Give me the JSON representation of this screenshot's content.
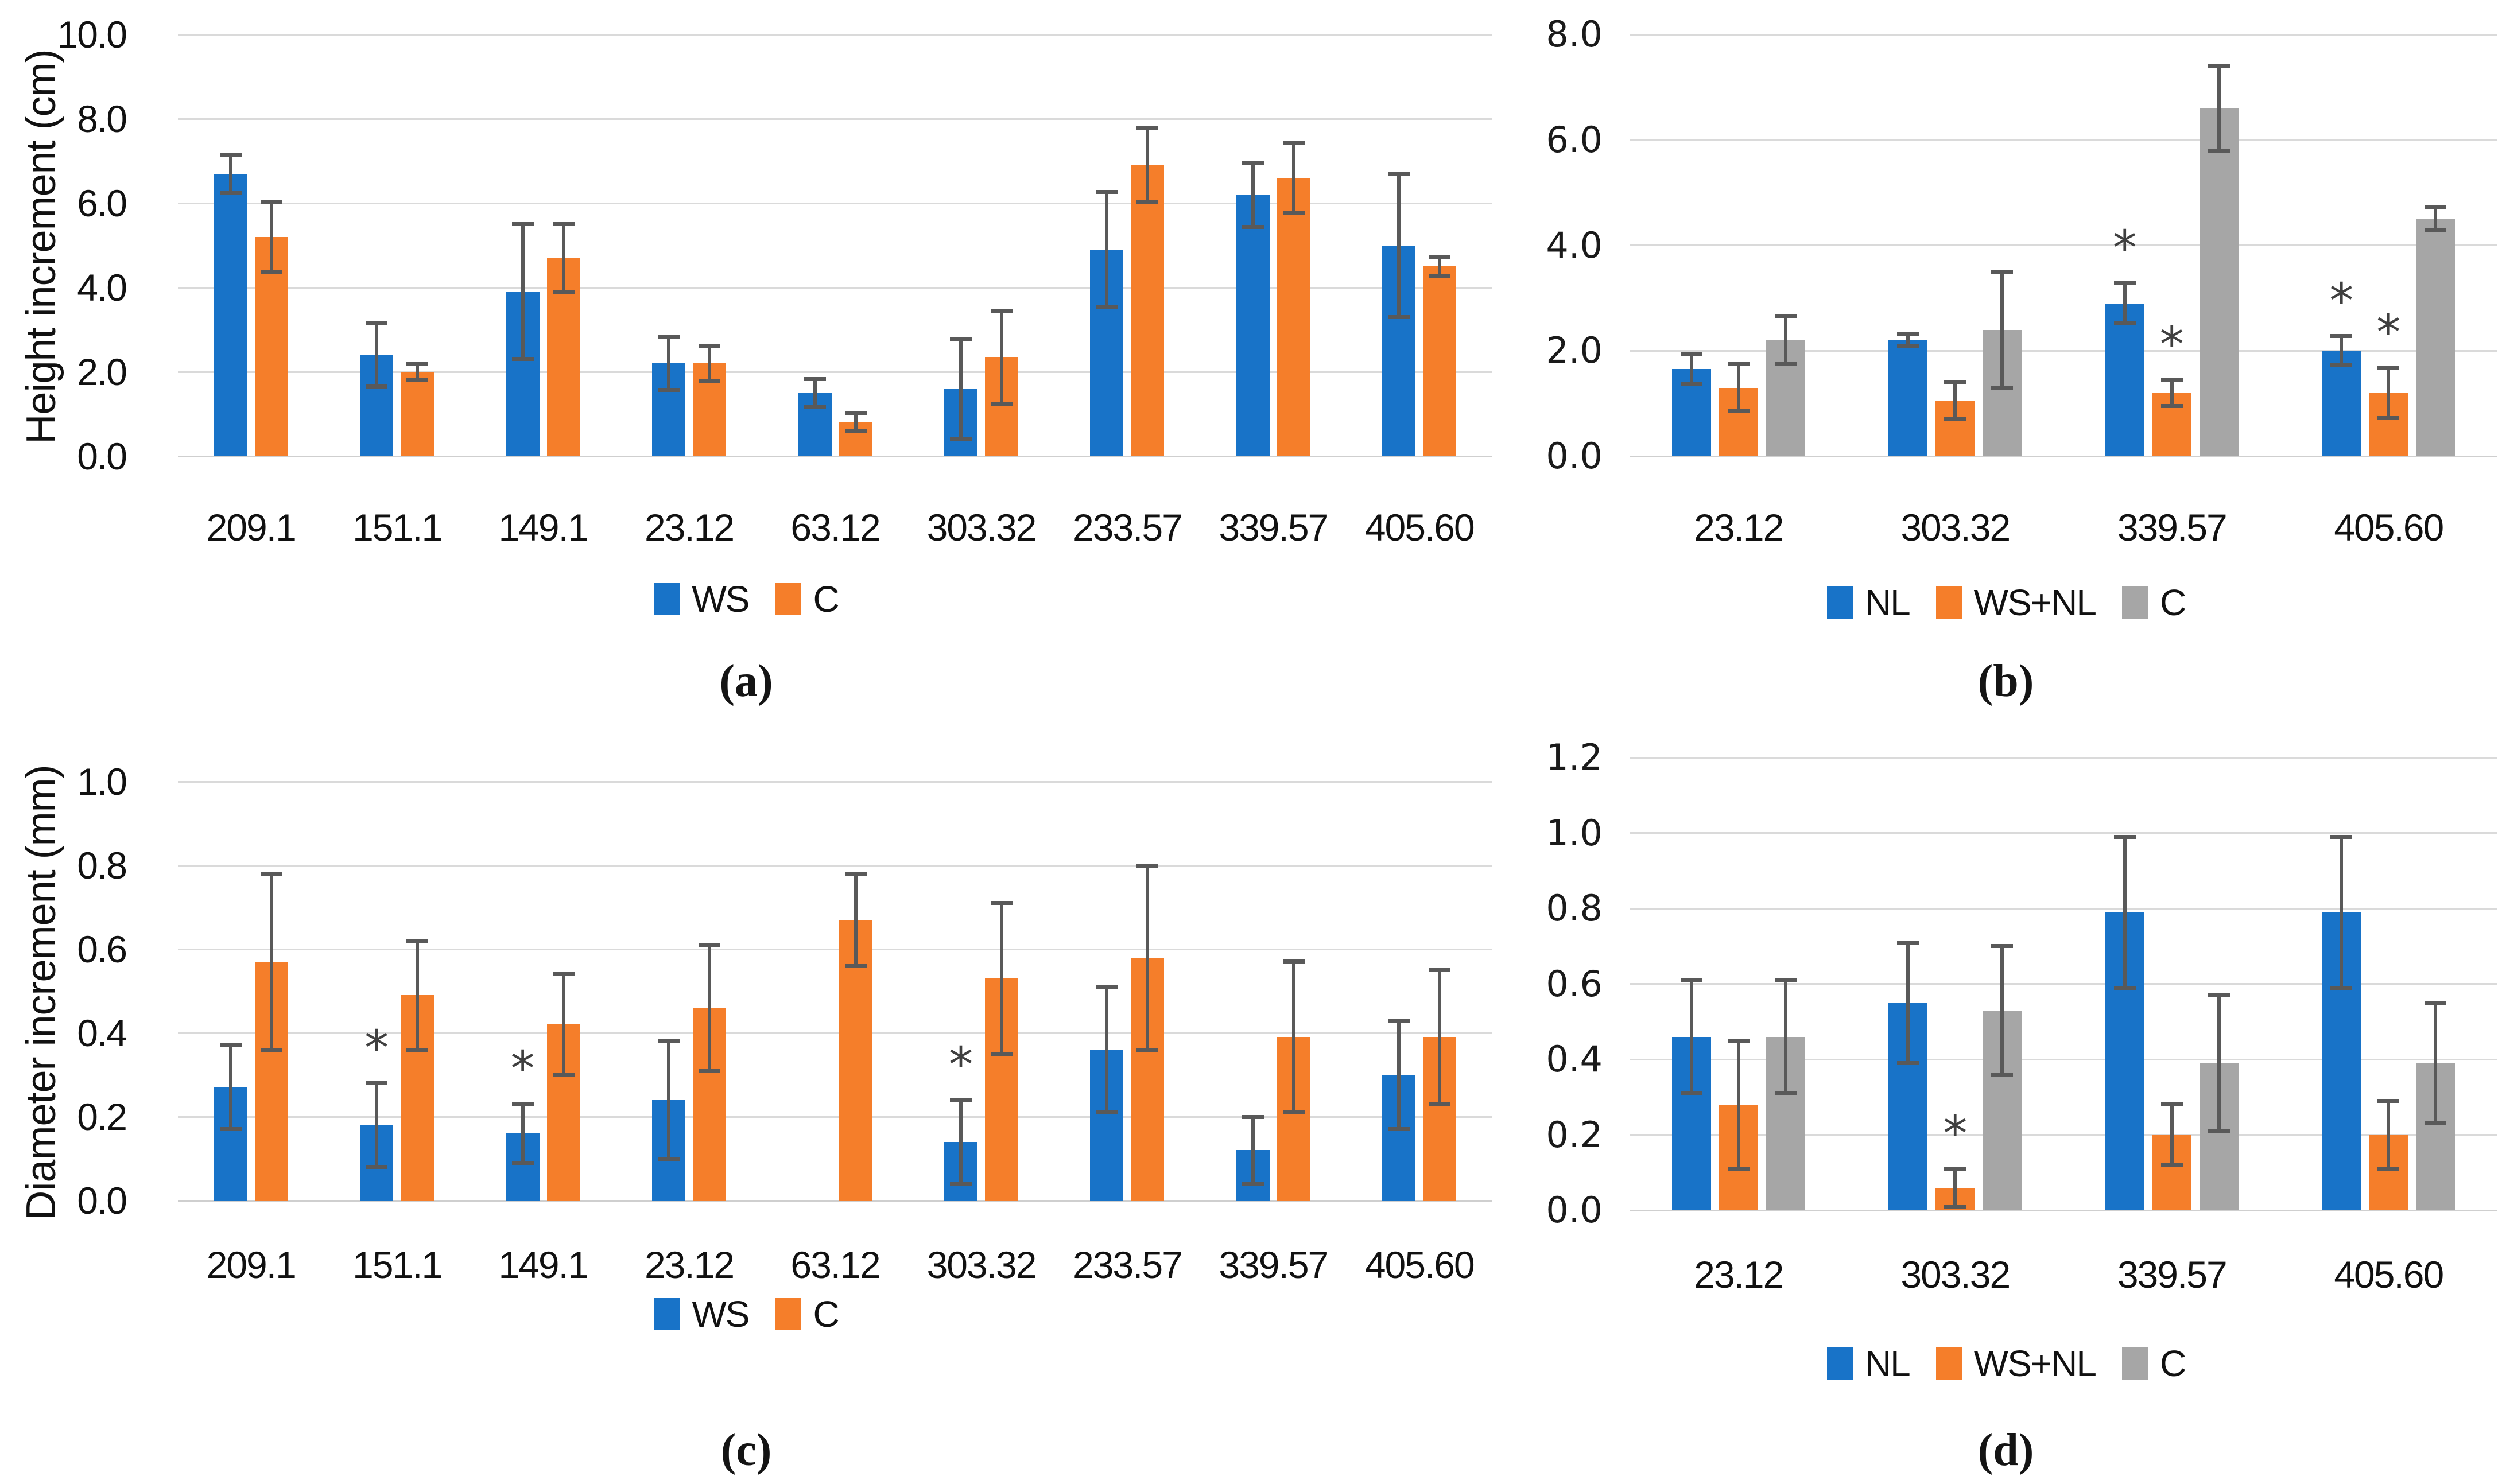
{
  "palette": {
    "blue": "#1873C8",
    "orange": "#F57E2A",
    "gray": "#A6A6A6",
    "error_bar": "#595959",
    "gridline": "#DADADA",
    "significance_marker": "*"
  },
  "chart_data": [
    {
      "id": "a",
      "type": "bar",
      "caption": "(a)",
      "ylabel": "Height increment (cm)",
      "xlabel": "",
      "ylim": [
        0,
        10
      ],
      "ytick_step": 2,
      "ytick_labels": [
        "0.0",
        "2.0",
        "4.0",
        "6.0",
        "8.0",
        "10.0"
      ],
      "grid": true,
      "legend_position": "bottom",
      "categories": [
        "209.1",
        "151.1",
        "149.1",
        "23.12",
        "63.12",
        "303.32",
        "233.57",
        "339.57",
        "405.60"
      ],
      "series": [
        {
          "name": "WS",
          "color": "#1873C8",
          "values": [
            6.7,
            2.4,
            3.9,
            2.2,
            1.5,
            1.6,
            4.9,
            6.2,
            5.0
          ],
          "errors": [
            0.45,
            0.75,
            1.6,
            0.63,
            0.33,
            1.18,
            1.37,
            0.76,
            1.7
          ],
          "stars": [
            false,
            false,
            false,
            false,
            false,
            false,
            false,
            false,
            false
          ]
        },
        {
          "name": "C",
          "color": "#F57E2A",
          "values": [
            5.2,
            2.0,
            4.7,
            2.2,
            0.8,
            2.35,
            6.9,
            6.6,
            4.5
          ],
          "errors": [
            0.83,
            0.2,
            0.8,
            0.42,
            0.21,
            1.1,
            0.87,
            0.83,
            0.22
          ],
          "stars": [
            false,
            false,
            false,
            false,
            false,
            false,
            false,
            false,
            false
          ]
        }
      ]
    },
    {
      "id": "b",
      "type": "bar",
      "caption": "(b)",
      "ylabel": "",
      "xlabel": "",
      "ylim": [
        0,
        8
      ],
      "ytick_step": 2,
      "ytick_labels": [
        "0.0",
        "2.0",
        "4.0",
        "6.0",
        "8.0"
      ],
      "grid": true,
      "legend_position": "bottom",
      "categories": [
        "23.12",
        "303.32",
        "339.57",
        "405.60"
      ],
      "series": [
        {
          "name": "NL",
          "color": "#1873C8",
          "values": [
            1.65,
            2.2,
            2.9,
            2.0
          ],
          "errors": [
            0.28,
            0.12,
            0.38,
            0.28
          ],
          "stars": [
            false,
            false,
            true,
            true
          ]
        },
        {
          "name": "WS+NL",
          "color": "#F57E2A",
          "values": [
            1.3,
            1.05,
            1.2,
            1.2
          ],
          "errors": [
            0.45,
            0.35,
            0.25,
            0.48
          ],
          "stars": [
            false,
            false,
            true,
            true
          ]
        },
        {
          "name": "C",
          "color": "#A6A6A6",
          "values": [
            2.2,
            2.4,
            6.6,
            4.5
          ],
          "errors": [
            0.45,
            1.1,
            0.8,
            0.22
          ],
          "stars": [
            false,
            false,
            false,
            false
          ]
        }
      ]
    },
    {
      "id": "c",
      "type": "bar",
      "caption": "(c)",
      "ylabel": "Diameter increment (mm)",
      "xlabel": "",
      "ylim": [
        0,
        1.0
      ],
      "ytick_step": 0.2,
      "ytick_labels": [
        "0.0",
        "0.2",
        "0.4",
        "0.6",
        "0.8",
        "1.0"
      ],
      "grid": true,
      "legend_position": "bottom",
      "categories": [
        "209.1",
        "151.1",
        "149.1",
        "23.12",
        "63.12",
        "303.32",
        "233.57",
        "339.57",
        "405.60"
      ],
      "series": [
        {
          "name": "WS",
          "color": "#1873C8",
          "values": [
            0.27,
            0.18,
            0.16,
            0.24,
            null,
            0.14,
            0.36,
            0.12,
            0.3
          ],
          "errors": [
            0.1,
            0.1,
            0.07,
            0.14,
            null,
            0.1,
            0.15,
            0.08,
            0.13
          ],
          "stars": [
            false,
            true,
            true,
            false,
            false,
            true,
            false,
            false,
            false
          ]
        },
        {
          "name": "C",
          "color": "#F57E2A",
          "values": [
            0.57,
            0.49,
            0.42,
            0.46,
            0.67,
            0.53,
            0.58,
            0.39,
            0.39
          ],
          "errors": [
            0.21,
            0.13,
            0.12,
            0.15,
            0.11,
            0.18,
            0.22,
            0.18,
            0.16
          ],
          "stars": [
            false,
            false,
            false,
            false,
            false,
            false,
            false,
            false,
            false
          ]
        }
      ]
    },
    {
      "id": "d",
      "type": "bar",
      "caption": "(d)",
      "ylabel": "",
      "xlabel": "",
      "ylim": [
        0,
        1.2
      ],
      "ytick_step": 0.2,
      "ytick_labels": [
        "0.0",
        "0.2",
        "0.4",
        "0.6",
        "0.8",
        "1.0",
        "1.2"
      ],
      "grid": true,
      "legend_position": "bottom",
      "categories": [
        "23.12",
        "303.32",
        "339.57",
        "405.60"
      ],
      "series": [
        {
          "name": "NL",
          "color": "#1873C8",
          "values": [
            0.46,
            0.55,
            0.79,
            0.79
          ],
          "errors": [
            0.15,
            0.16,
            0.2,
            0.2
          ],
          "stars": [
            false,
            false,
            false,
            false
          ]
        },
        {
          "name": "WS+NL",
          "color": "#F57E2A",
          "values": [
            0.28,
            0.06,
            0.2,
            0.2
          ],
          "errors": [
            0.17,
            0.05,
            0.08,
            0.09
          ],
          "stars": [
            false,
            true,
            false,
            false
          ]
        },
        {
          "name": "C",
          "color": "#A6A6A6",
          "values": [
            0.46,
            0.53,
            0.39,
            0.39
          ],
          "errors": [
            0.15,
            0.17,
            0.18,
            0.16
          ],
          "stars": [
            false,
            false,
            false,
            false
          ]
        }
      ]
    }
  ]
}
